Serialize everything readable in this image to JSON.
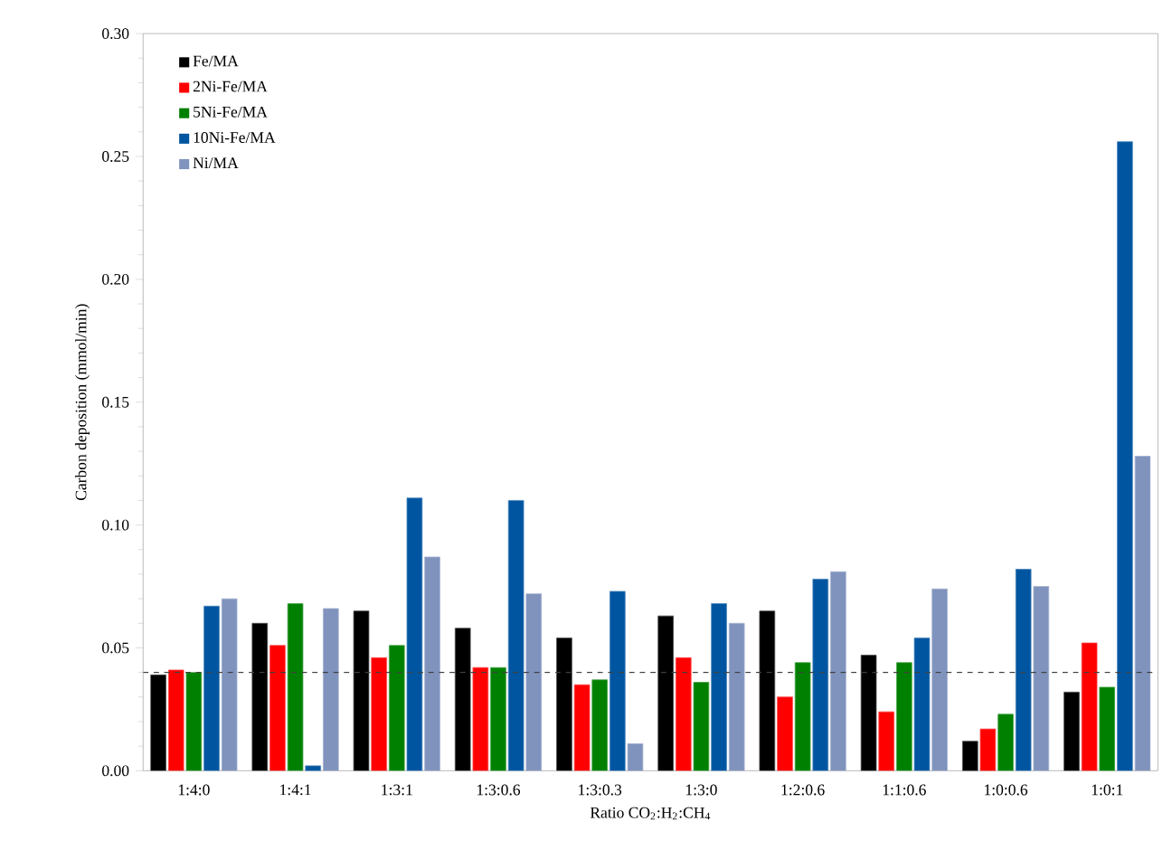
{
  "chart_data": {
    "type": "bar",
    "xlabel": "Ratio CO$_{2}$:H$_{2}$:CH$_{4}$",
    "ylabel": "Carbon deposition (mmol/min)",
    "categories": [
      "1:4:0",
      "1:4:1",
      "1:3:1",
      "1:3:0.6",
      "1:3:0.3",
      "1:3:0",
      "1:2:0.6",
      "1:1:0.6",
      "1:0:0.6",
      "1:0:1"
    ],
    "series": [
      {
        "name": "Fe/MA",
        "color": "#000000",
        "values": [
          0.039,
          0.06,
          0.065,
          0.058,
          0.054,
          0.063,
          0.065,
          0.047,
          0.012,
          0.032
        ]
      },
      {
        "name": "2Ni-Fe/MA",
        "color": "#ff0000",
        "values": [
          0.041,
          0.051,
          0.046,
          0.042,
          0.035,
          0.046,
          0.03,
          0.024,
          0.017,
          0.052
        ]
      },
      {
        "name": "5Ni-Fe/MA",
        "color": "#008000",
        "values": [
          0.04,
          0.068,
          0.051,
          0.042,
          0.037,
          0.036,
          0.044,
          0.044,
          0.023,
          0.034
        ]
      },
      {
        "name": "10Ni-Fe/MA",
        "color": "#0055a0",
        "values": [
          0.067,
          0.002,
          0.111,
          0.11,
          0.073,
          0.068,
          0.078,
          0.054,
          0.082,
          0.256
        ]
      },
      {
        "name": "Ni/MA",
        "color": "#7f93bd",
        "values": [
          0.07,
          0.066,
          0.087,
          0.072,
          0.011,
          0.06,
          0.081,
          0.074,
          0.075,
          0.128
        ]
      }
    ],
    "ylim": [
      0,
      0.3
    ],
    "yticks": [
      {
        "value": 0,
        "label": "0.00"
      },
      {
        "value": 0.05,
        "label": "0.05"
      },
      {
        "value": 0.1,
        "label": "0.10"
      },
      {
        "value": 0.15,
        "label": "0.15"
      },
      {
        "value": 0.2,
        "label": "0.20"
      },
      {
        "value": 0.25,
        "label": "0.25"
      },
      {
        "value": 0.3,
        "label": "0.30"
      }
    ],
    "ref_lines": [
      {
        "axis": "y",
        "value": 0.04,
        "color": "#404040",
        "line_style": "dashed"
      }
    ],
    "legend": "top left",
    "grid": false
  }
}
